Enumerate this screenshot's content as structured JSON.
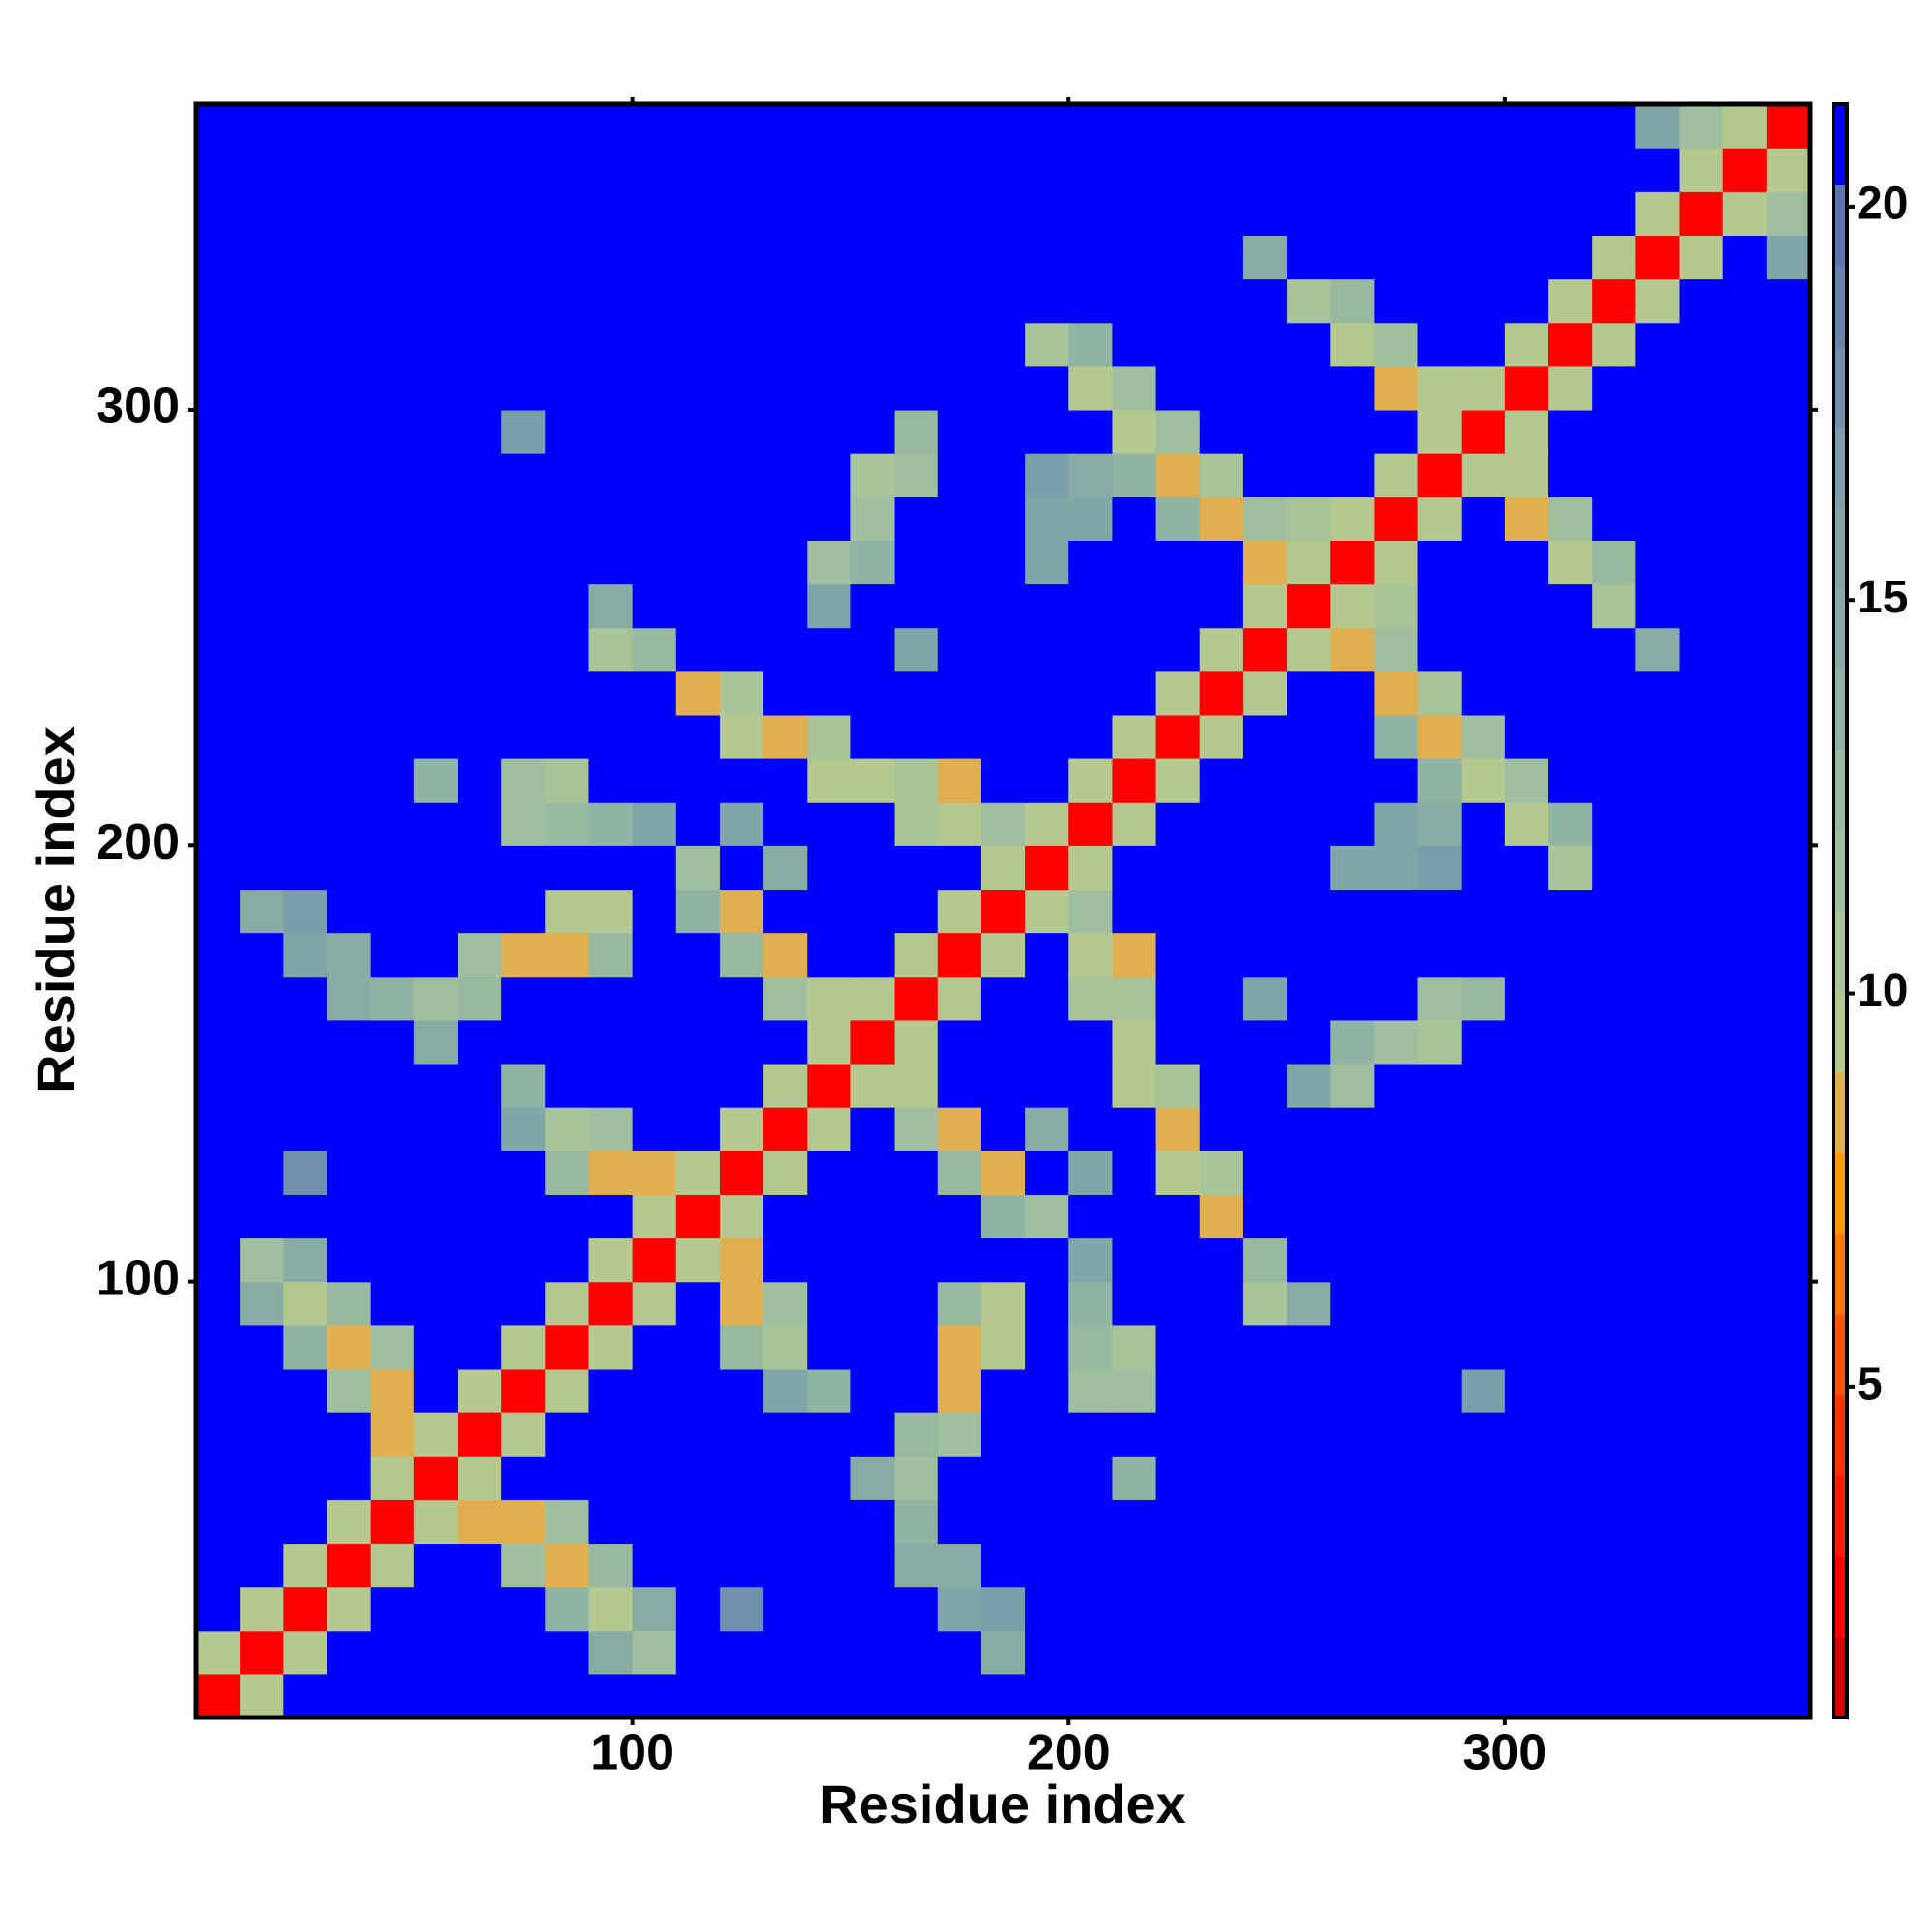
{
  "chart_data": {
    "type": "heatmap",
    "xlabel": "Residue index",
    "ylabel": "Residue index",
    "xlim": [
      0,
      370
    ],
    "ylim": [
      0,
      370
    ],
    "xticks": [
      100,
      200,
      300
    ],
    "yticks": [
      100,
      200,
      300
    ],
    "x": [
      5,
      15,
      25,
      35,
      45,
      55,
      65,
      75,
      85,
      95,
      105,
      115,
      125,
      135,
      145,
      155,
      165,
      175,
      185,
      195,
      205,
      215,
      225,
      235,
      245,
      255,
      265,
      275,
      285,
      295,
      305,
      315,
      325,
      335,
      345,
      355,
      365
    ],
    "y": [
      5,
      15,
      25,
      35,
      45,
      55,
      65,
      75,
      85,
      95,
      105,
      115,
      125,
      135,
      145,
      155,
      165,
      175,
      185,
      195,
      205,
      215,
      225,
      235,
      245,
      255,
      265,
      275,
      285,
      295,
      305,
      315,
      325,
      335,
      345,
      355,
      365
    ],
    "z": [
      [
        2,
        10,
        21,
        21,
        21,
        21,
        21,
        21,
        21,
        21,
        21,
        21,
        21,
        21,
        21,
        21,
        21,
        21,
        21,
        21,
        21,
        21,
        21,
        21,
        21,
        21,
        21,
        21,
        21,
        21,
        21,
        21,
        21,
        21,
        21,
        21,
        21
      ],
      [
        10,
        2,
        10,
        21,
        21,
        21,
        21,
        21,
        21,
        15,
        12,
        21,
        21,
        21,
        21,
        21,
        21,
        21,
        15,
        21,
        21,
        21,
        21,
        21,
        21,
        21,
        21,
        21,
        21,
        21,
        21,
        21,
        21,
        21,
        21,
        21,
        21
      ],
      [
        21,
        10,
        2,
        10,
        21,
        21,
        21,
        21,
        14,
        10,
        15,
        21,
        18,
        21,
        21,
        21,
        21,
        16,
        17,
        21,
        21,
        21,
        21,
        21,
        21,
        21,
        21,
        21,
        21,
        21,
        21,
        21,
        21,
        21,
        21,
        21,
        21
      ],
      [
        21,
        21,
        10,
        2,
        10,
        21,
        21,
        12,
        9,
        13,
        21,
        21,
        21,
        21,
        21,
        21,
        15,
        15,
        21,
        21,
        21,
        21,
        21,
        21,
        21,
        21,
        21,
        21,
        21,
        21,
        21,
        21,
        21,
        21,
        21,
        21,
        21
      ],
      [
        21,
        21,
        21,
        10,
        2,
        10,
        9,
        8,
        12,
        21,
        21,
        21,
        21,
        21,
        21,
        21,
        14,
        21,
        21,
        21,
        21,
        21,
        21,
        21,
        21,
        21,
        21,
        21,
        21,
        21,
        21,
        21,
        21,
        21,
        21,
        21,
        21
      ],
      [
        21,
        21,
        21,
        21,
        10,
        2,
        10,
        21,
        21,
        21,
        21,
        21,
        21,
        21,
        21,
        15,
        12,
        21,
        21,
        21,
        21,
        14,
        21,
        21,
        21,
        21,
        21,
        21,
        21,
        21,
        21,
        21,
        21,
        21,
        21,
        21,
        21
      ],
      [
        21,
        21,
        21,
        21,
        9,
        10,
        2,
        10,
        21,
        21,
        21,
        21,
        21,
        21,
        21,
        21,
        13,
        12,
        21,
        21,
        21,
        21,
        21,
        21,
        21,
        21,
        21,
        21,
        21,
        21,
        21,
        21,
        21,
        21,
        21,
        21,
        21
      ],
      [
        21,
        21,
        21,
        12,
        8,
        21,
        10,
        2,
        10,
        21,
        21,
        21,
        21,
        16,
        14,
        21,
        21,
        9,
        21,
        21,
        12,
        12,
        21,
        21,
        21,
        21,
        21,
        21,
        21,
        17,
        21,
        21,
        21,
        21,
        21,
        21,
        21
      ],
      [
        21,
        21,
        14,
        9,
        12,
        21,
        21,
        10,
        2,
        10,
        21,
        21,
        13,
        11,
        21,
        21,
        21,
        8,
        10,
        21,
        13,
        11,
        21,
        21,
        21,
        21,
        21,
        21,
        21,
        21,
        21,
        21,
        21,
        21,
        21,
        21,
        21
      ],
      [
        21,
        15,
        10,
        13,
        21,
        21,
        21,
        21,
        10,
        2,
        10,
        21,
        8,
        12,
        21,
        21,
        21,
        13,
        10,
        21,
        14,
        21,
        21,
        21,
        11,
        15,
        21,
        21,
        21,
        21,
        21,
        21,
        21,
        21,
        21,
        21,
        21
      ],
      [
        21,
        12,
        15,
        21,
        21,
        21,
        21,
        21,
        21,
        10,
        2,
        10,
        9,
        21,
        21,
        21,
        21,
        21,
        21,
        21,
        16,
        21,
        21,
        21,
        13,
        21,
        21,
        21,
        21,
        21,
        21,
        21,
        21,
        21,
        21,
        21,
        21
      ],
      [
        21,
        21,
        21,
        21,
        21,
        21,
        21,
        21,
        21,
        21,
        10,
        2,
        10,
        21,
        21,
        21,
        21,
        21,
        14,
        12,
        21,
        21,
        21,
        9,
        21,
        21,
        21,
        21,
        21,
        21,
        21,
        21,
        21,
        21,
        21,
        21,
        21
      ],
      [
        21,
        21,
        18,
        21,
        21,
        21,
        21,
        21,
        13,
        8,
        9,
        10,
        2,
        10,
        21,
        21,
        21,
        13,
        9,
        21,
        16,
        21,
        10,
        11,
        21,
        21,
        21,
        21,
        21,
        21,
        21,
        21,
        21,
        21,
        21,
        21,
        21
      ],
      [
        21,
        21,
        21,
        21,
        21,
        21,
        21,
        16,
        11,
        12,
        21,
        21,
        10,
        2,
        10,
        21,
        12,
        8,
        21,
        15,
        21,
        21,
        9,
        21,
        21,
        21,
        21,
        21,
        21,
        21,
        21,
        21,
        21,
        21,
        21,
        21,
        21
      ],
      [
        21,
        21,
        21,
        21,
        21,
        21,
        21,
        14,
        21,
        21,
        21,
        21,
        21,
        10,
        2,
        10,
        10,
        21,
        21,
        21,
        21,
        10,
        11,
        21,
        21,
        16,
        12,
        21,
        21,
        21,
        21,
        21,
        21,
        21,
        21,
        21,
        21
      ],
      [
        21,
        21,
        21,
        21,
        21,
        15,
        21,
        21,
        21,
        21,
        21,
        21,
        21,
        21,
        10,
        2,
        10,
        21,
        21,
        21,
        21,
        10,
        21,
        21,
        21,
        21,
        14,
        12,
        11,
        21,
        21,
        21,
        21,
        21,
        21,
        21,
        21
      ],
      [
        21,
        21,
        21,
        15,
        14,
        12,
        13,
        21,
        21,
        21,
        21,
        21,
        21,
        12,
        10,
        10,
        2,
        10,
        21,
        21,
        11,
        11,
        21,
        21,
        16,
        21,
        21,
        21,
        12,
        13,
        21,
        21,
        21,
        21,
        21,
        21,
        21
      ],
      [
        21,
        21,
        16,
        15,
        21,
        21,
        12,
        9,
        8,
        13,
        21,
        21,
        13,
        8,
        21,
        21,
        10,
        2,
        10,
        21,
        10,
        9,
        21,
        21,
        21,
        21,
        21,
        21,
        21,
        21,
        21,
        21,
        21,
        21,
        21,
        21,
        21
      ],
      [
        21,
        15,
        17,
        21,
        21,
        21,
        21,
        21,
        10,
        10,
        21,
        14,
        9,
        21,
        21,
        21,
        21,
        10,
        2,
        10,
        12,
        21,
        21,
        21,
        21,
        21,
        21,
        21,
        21,
        21,
        21,
        21,
        21,
        21,
        21,
        21,
        21
      ],
      [
        21,
        21,
        21,
        21,
        21,
        21,
        21,
        21,
        21,
        21,
        21,
        12,
        21,
        15,
        21,
        21,
        21,
        21,
        10,
        2,
        10,
        21,
        21,
        21,
        21,
        21,
        16,
        16,
        17,
        21,
        21,
        11,
        21,
        21,
        21,
        21,
        21
      ],
      [
        21,
        21,
        21,
        21,
        21,
        21,
        21,
        12,
        13,
        14,
        16,
        21,
        16,
        21,
        21,
        21,
        11,
        10,
        12,
        10,
        2,
        10,
        21,
        21,
        21,
        21,
        21,
        16,
        15,
        21,
        10,
        14,
        21,
        21,
        21,
        21,
        21
      ],
      [
        21,
        21,
        21,
        21,
        21,
        14,
        21,
        12,
        11,
        21,
        21,
        21,
        21,
        21,
        10,
        10,
        11,
        9,
        21,
        21,
        10,
        2,
        10,
        21,
        21,
        21,
        21,
        21,
        14,
        10,
        12,
        21,
        21,
        21,
        21,
        21,
        21
      ],
      [
        21,
        21,
        21,
        21,
        21,
        21,
        21,
        21,
        21,
        21,
        21,
        21,
        10,
        9,
        11,
        21,
        21,
        21,
        21,
        21,
        21,
        10,
        2,
        10,
        21,
        21,
        21,
        14,
        9,
        12,
        21,
        21,
        21,
        21,
        21,
        21,
        21
      ],
      [
        21,
        21,
        21,
        21,
        21,
        21,
        21,
        21,
        21,
        21,
        21,
        9,
        11,
        21,
        21,
        21,
        21,
        21,
        21,
        21,
        21,
        21,
        10,
        2,
        10,
        21,
        21,
        8,
        11,
        21,
        21,
        21,
        21,
        21,
        21,
        21,
        21
      ],
      [
        21,
        21,
        21,
        21,
        21,
        21,
        21,
        21,
        21,
        11,
        13,
        21,
        21,
        21,
        21,
        21,
        16,
        21,
        21,
        21,
        21,
        21,
        21,
        10,
        2,
        10,
        9,
        12,
        21,
        21,
        21,
        21,
        21,
        15,
        21,
        21,
        21
      ],
      [
        21,
        21,
        21,
        21,
        21,
        21,
        21,
        21,
        21,
        15,
        21,
        21,
        21,
        21,
        16,
        21,
        21,
        21,
        21,
        21,
        21,
        21,
        21,
        21,
        10,
        2,
        10,
        11,
        21,
        21,
        21,
        21,
        11,
        21,
        21,
        21,
        21
      ],
      [
        21,
        21,
        21,
        21,
        21,
        21,
        21,
        21,
        21,
        21,
        21,
        21,
        21,
        21,
        12,
        14,
        21,
        21,
        21,
        16,
        21,
        21,
        21,
        21,
        9,
        10,
        2,
        10,
        21,
        21,
        21,
        10,
        13,
        21,
        21,
        21,
        21
      ],
      [
        21,
        21,
        21,
        21,
        21,
        21,
        21,
        21,
        21,
        21,
        21,
        21,
        21,
        21,
        21,
        12,
        21,
        21,
        21,
        16,
        16,
        21,
        14,
        8,
        12,
        11,
        10,
        2,
        10,
        21,
        9,
        12,
        21,
        21,
        21,
        21,
        21
      ],
      [
        21,
        21,
        21,
        21,
        21,
        21,
        21,
        21,
        21,
        21,
        21,
        21,
        21,
        21,
        21,
        11,
        12,
        21,
        21,
        17,
        15,
        14,
        9,
        11,
        21,
        21,
        21,
        10,
        2,
        10,
        10,
        21,
        21,
        21,
        21,
        21,
        21
      ],
      [
        21,
        21,
        21,
        21,
        21,
        21,
        21,
        17,
        21,
        21,
        21,
        21,
        21,
        21,
        21,
        21,
        13,
        21,
        21,
        21,
        21,
        10,
        12,
        21,
        21,
        21,
        21,
        21,
        10,
        2,
        10,
        21,
        21,
        21,
        21,
        21,
        21
      ],
      [
        21,
        21,
        21,
        21,
        21,
        21,
        21,
        21,
        21,
        21,
        21,
        21,
        21,
        21,
        21,
        21,
        21,
        21,
        21,
        21,
        10,
        12,
        21,
        21,
        21,
        21,
        21,
        9,
        10,
        10,
        2,
        10,
        21,
        21,
        21,
        21,
        21
      ],
      [
        21,
        21,
        21,
        21,
        21,
        21,
        21,
        21,
        21,
        21,
        21,
        21,
        21,
        21,
        21,
        21,
        21,
        21,
        21,
        11,
        14,
        21,
        21,
        21,
        21,
        21,
        10,
        12,
        21,
        21,
        10,
        2,
        10,
        21,
        21,
        21,
        21
      ],
      [
        21,
        21,
        21,
        21,
        21,
        21,
        21,
        21,
        21,
        21,
        21,
        21,
        21,
        21,
        21,
        21,
        21,
        21,
        21,
        21,
        21,
        21,
        21,
        21,
        21,
        11,
        13,
        21,
        21,
        21,
        21,
        10,
        2,
        10,
        21,
        21,
        21
      ],
      [
        21,
        21,
        21,
        21,
        21,
        21,
        21,
        21,
        21,
        21,
        21,
        21,
        21,
        21,
        21,
        21,
        21,
        21,
        21,
        21,
        21,
        21,
        21,
        21,
        15,
        21,
        21,
        21,
        21,
        21,
        21,
        21,
        10,
        2,
        10,
        21,
        16
      ],
      [
        21,
        21,
        21,
        21,
        21,
        21,
        21,
        21,
        21,
        21,
        21,
        21,
        21,
        21,
        21,
        21,
        21,
        21,
        21,
        21,
        21,
        21,
        21,
        21,
        21,
        21,
        21,
        21,
        21,
        21,
        21,
        21,
        21,
        10,
        2,
        10,
        12
      ],
      [
        21,
        21,
        21,
        21,
        21,
        21,
        21,
        21,
        21,
        21,
        21,
        21,
        21,
        21,
        21,
        21,
        21,
        21,
        21,
        21,
        21,
        21,
        21,
        21,
        21,
        21,
        21,
        21,
        21,
        21,
        21,
        21,
        21,
        21,
        10,
        2,
        10
      ],
      [
        21,
        21,
        21,
        21,
        21,
        21,
        21,
        21,
        21,
        21,
        21,
        21,
        21,
        21,
        21,
        21,
        21,
        21,
        21,
        21,
        21,
        21,
        21,
        21,
        21,
        21,
        21,
        21,
        21,
        21,
        21,
        21,
        21,
        16,
        12,
        10,
        2
      ]
    ],
    "colorbar": {
      "zlim": [
        0.8,
        21.3
      ],
      "ticks": [
        5,
        10,
        15,
        20
      ],
      "colormap": [
        "#d40000",
        "#ff0000",
        "#ff1a00",
        "#ff3300",
        "#ff5500",
        "#ff7700",
        "#ff9900",
        "#e0b050",
        "#b4c890",
        "#a8c498",
        "#a0bea0",
        "#98b8a0",
        "#90b4a4",
        "#88aca4",
        "#80a6a8",
        "#7a9eaa",
        "#7090ac",
        "#6684ae",
        "#5a76b0",
        "#0000ff"
      ]
    }
  }
}
